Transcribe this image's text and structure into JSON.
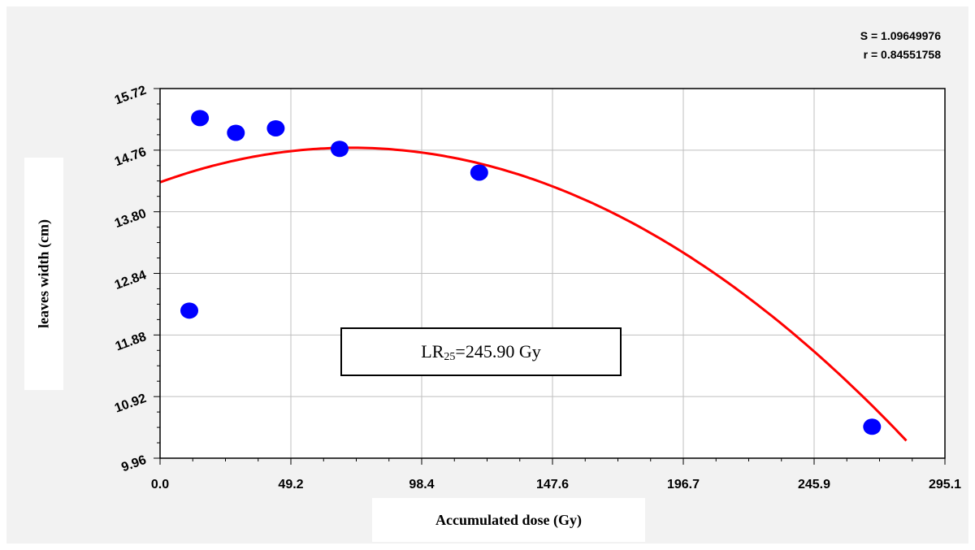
{
  "chart_data": {
    "type": "scatter",
    "title": "",
    "xlabel": "Accumulated dose (Gy)",
    "ylabel": "leaves width (cm)",
    "xlim": [
      0,
      295.1
    ],
    "ylim": [
      9.96,
      15.72
    ],
    "x_ticks": [
      "0.0",
      "49.2",
      "98.4",
      "147.6",
      "196.7",
      "245.9",
      "295.1"
    ],
    "y_ticks": [
      "9.96",
      "10.92",
      "11.88",
      "12.84",
      "13.80",
      "14.76",
      "15.72"
    ],
    "grid": true,
    "stats": {
      "s_text": "S = 1.09649976",
      "r_text": "r = 0.84551758"
    },
    "annotation": {
      "prefix": "LR",
      "subscript": "25",
      "suffix": "=245.90 Gy"
    },
    "colors": {
      "points": "#0000ff",
      "fit": "#ff0000",
      "grid": "#bfbfbf",
      "background": "#f2f2f2"
    },
    "series": [
      {
        "type": "scatter",
        "points": [
          {
            "x": 11.0,
            "y": 12.26
          },
          {
            "x": 15.0,
            "y": 15.26
          },
          {
            "x": 28.5,
            "y": 15.03
          },
          {
            "x": 43.5,
            "y": 15.1
          },
          {
            "x": 67.5,
            "y": 14.78
          },
          {
            "x": 120.0,
            "y": 14.41
          },
          {
            "x": 267.7,
            "y": 10.45
          }
        ]
      },
      {
        "type": "line",
        "fit": "quadratic",
        "coefficients": {
          "a": -0.0001046,
          "b": 0.015,
          "c": 14.26
        },
        "x_range": [
          0,
          280.6
        ]
      }
    ]
  }
}
